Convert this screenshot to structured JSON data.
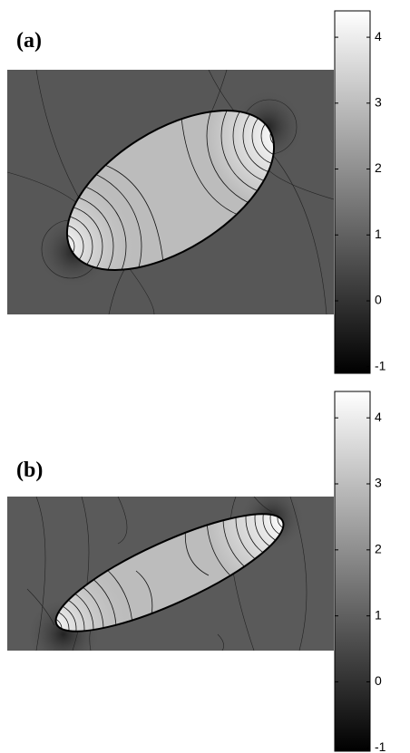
{
  "chart_data": [
    {
      "type": "contour",
      "label": "(a)",
      "colormap": "gray",
      "clim": [
        -1.1,
        4.4
      ],
      "cticks": [
        -1,
        0,
        1,
        2,
        3,
        4
      ]
    },
    {
      "type": "contour",
      "label": "(b)",
      "colormap": "gray",
      "clim": [
        -1.05,
        4.4
      ],
      "cticks": [
        -1,
        0,
        1,
        2,
        3,
        4
      ]
    }
  ]
}
